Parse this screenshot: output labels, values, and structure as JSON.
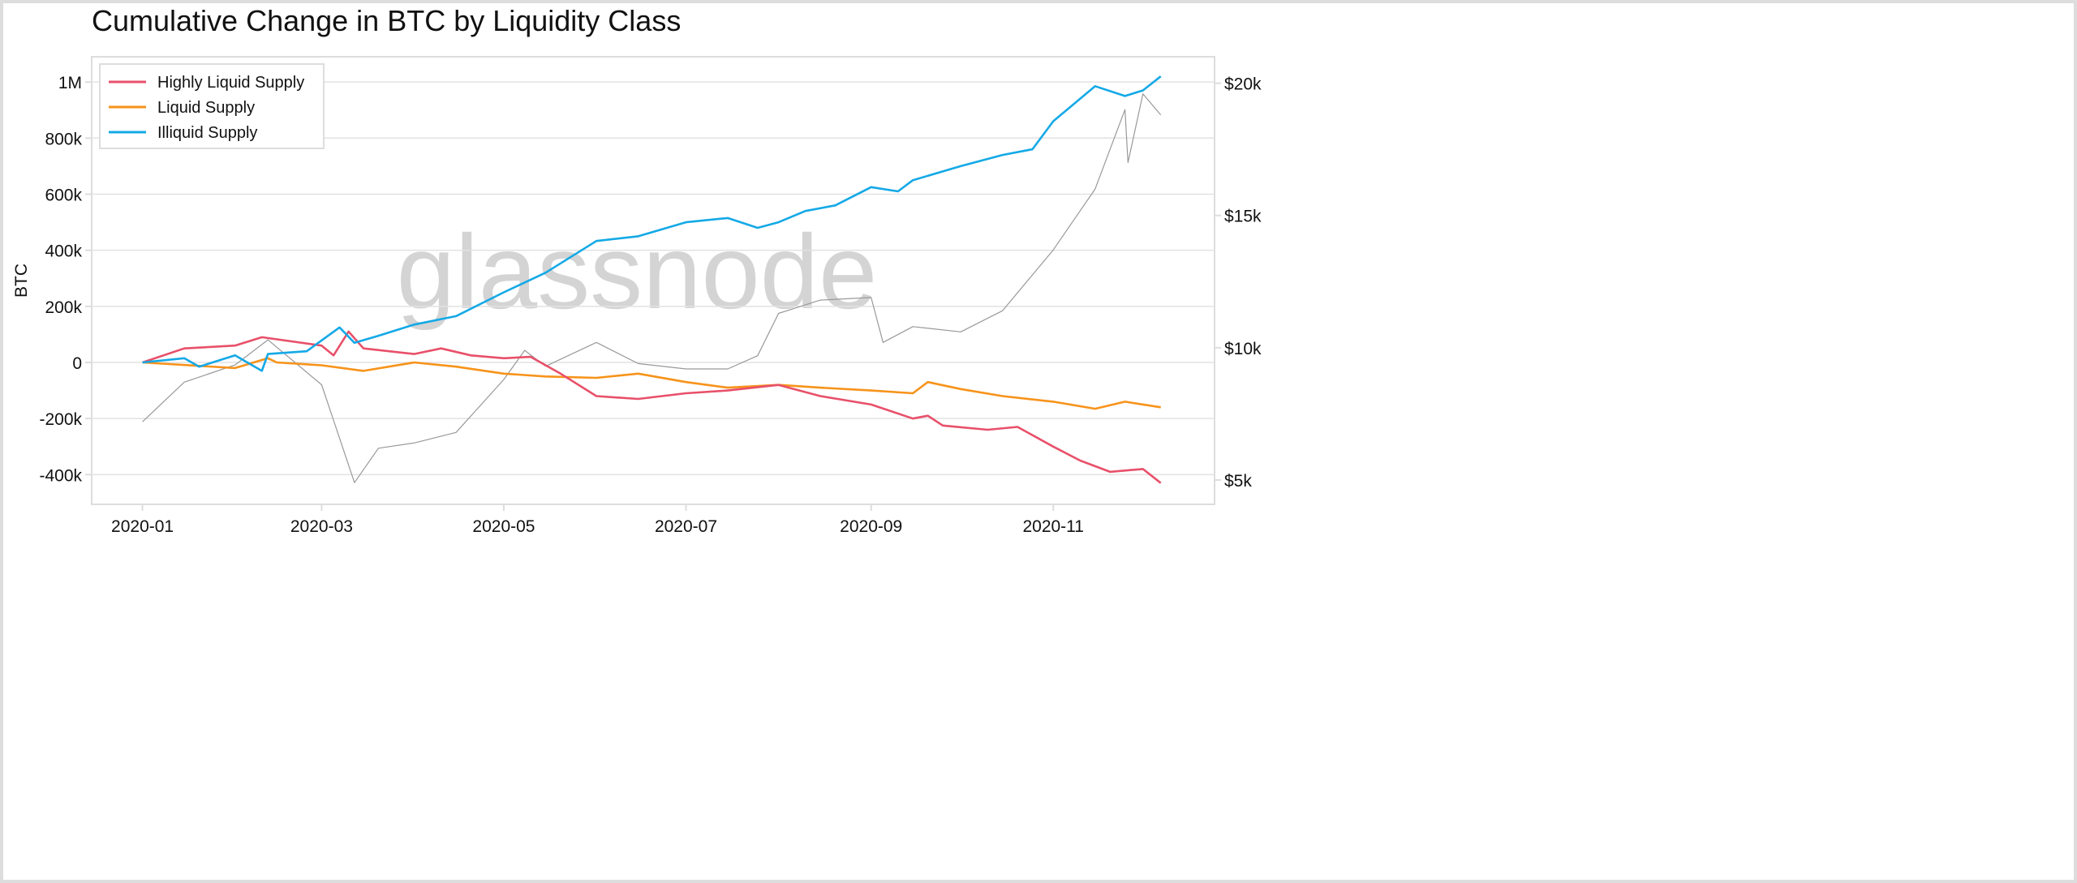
{
  "chart_data": {
    "type": "line",
    "title": "Cumulative Change in BTC by Liquidity Class",
    "ylabel": "BTC",
    "ylabel_right": "",
    "watermark": "glassnode",
    "xlim": [
      "2019-12-15",
      "2020-12-25"
    ],
    "ylim": [
      -506000,
      1090000
    ],
    "ylim_right": [
      4080,
      21000
    ],
    "grid": true,
    "legend_position": "top-left",
    "x_ticks": [
      "2020-01",
      "2020-03",
      "2020-05",
      "2020-07",
      "2020-09",
      "2020-11"
    ],
    "y_ticks": [
      {
        "v": 1000000,
        "label": "1M"
      },
      {
        "v": 800000,
        "label": "800k"
      },
      {
        "v": 600000,
        "label": "600k"
      },
      {
        "v": 400000,
        "label": "400k"
      },
      {
        "v": 200000,
        "label": "200k"
      },
      {
        "v": 0,
        "label": "0"
      },
      {
        "v": -200000,
        "label": "-200k"
      },
      {
        "v": -400000,
        "label": "-400k"
      }
    ],
    "y_ticks_right": [
      {
        "v": 20000,
        "label": "$20k"
      },
      {
        "v": 15000,
        "label": "$15k"
      },
      {
        "v": 10000,
        "label": "$10k"
      },
      {
        "v": 5000,
        "label": "$5k"
      }
    ],
    "series": [
      {
        "name": "Highly Liquid Supply",
        "color": "#e8506a",
        "axis": "left",
        "points": [
          [
            "2020-01-01",
            0
          ],
          [
            "2020-01-15",
            50000
          ],
          [
            "2020-02-01",
            60000
          ],
          [
            "2020-02-10",
            90000
          ],
          [
            "2020-03-01",
            60000
          ],
          [
            "2020-03-05",
            25000
          ],
          [
            "2020-03-10",
            110000
          ],
          [
            "2020-03-15",
            50000
          ],
          [
            "2020-04-01",
            30000
          ],
          [
            "2020-04-10",
            50000
          ],
          [
            "2020-04-20",
            25000
          ],
          [
            "2020-05-01",
            15000
          ],
          [
            "2020-05-10",
            20000
          ],
          [
            "2020-05-20",
            -40000
          ],
          [
            "2020-06-01",
            -120000
          ],
          [
            "2020-06-15",
            -130000
          ],
          [
            "2020-07-01",
            -110000
          ],
          [
            "2020-07-15",
            -100000
          ],
          [
            "2020-08-01",
            -80000
          ],
          [
            "2020-08-15",
            -120000
          ],
          [
            "2020-09-01",
            -150000
          ],
          [
            "2020-09-15",
            -200000
          ],
          [
            "2020-09-20",
            -190000
          ],
          [
            "2020-09-25",
            -225000
          ],
          [
            "2020-10-10",
            -240000
          ],
          [
            "2020-10-20",
            -230000
          ],
          [
            "2020-11-01",
            -300000
          ],
          [
            "2020-11-10",
            -350000
          ],
          [
            "2020-11-20",
            -390000
          ],
          [
            "2020-12-01",
            -380000
          ],
          [
            "2020-12-07",
            -430000
          ]
        ]
      },
      {
        "name": "Liquid Supply",
        "color": "#f7931a",
        "axis": "left",
        "points": [
          [
            "2020-01-01",
            0
          ],
          [
            "2020-02-01",
            -20000
          ],
          [
            "2020-02-12",
            15000
          ],
          [
            "2020-02-15",
            0
          ],
          [
            "2020-03-01",
            -10000
          ],
          [
            "2020-03-15",
            -30000
          ],
          [
            "2020-04-01",
            0
          ],
          [
            "2020-04-15",
            -15000
          ],
          [
            "2020-05-01",
            -40000
          ],
          [
            "2020-05-15",
            -50000
          ],
          [
            "2020-06-01",
            -55000
          ],
          [
            "2020-06-15",
            -40000
          ],
          [
            "2020-07-01",
            -70000
          ],
          [
            "2020-07-15",
            -90000
          ],
          [
            "2020-08-01",
            -80000
          ],
          [
            "2020-08-15",
            -90000
          ],
          [
            "2020-09-01",
            -100000
          ],
          [
            "2020-09-15",
            -110000
          ],
          [
            "2020-09-20",
            -70000
          ],
          [
            "2020-10-01",
            -95000
          ],
          [
            "2020-10-15",
            -120000
          ],
          [
            "2020-11-01",
            -140000
          ],
          [
            "2020-11-15",
            -165000
          ],
          [
            "2020-11-25",
            -140000
          ],
          [
            "2020-12-07",
            -160000
          ]
        ]
      },
      {
        "name": "Illiquid Supply",
        "color": "#14a9e6",
        "axis": "left",
        "points": [
          [
            "2020-01-01",
            0
          ],
          [
            "2020-01-15",
            15000
          ],
          [
            "2020-01-20",
            -15000
          ],
          [
            "2020-02-01",
            25000
          ],
          [
            "2020-02-10",
            -30000
          ],
          [
            "2020-02-12",
            30000
          ],
          [
            "2020-02-25",
            40000
          ],
          [
            "2020-03-07",
            125000
          ],
          [
            "2020-03-12",
            70000
          ],
          [
            "2020-03-20",
            95000
          ],
          [
            "2020-04-01",
            135000
          ],
          [
            "2020-04-15",
            165000
          ],
          [
            "2020-05-01",
            250000
          ],
          [
            "2020-05-15",
            320000
          ],
          [
            "2020-06-01",
            433000
          ],
          [
            "2020-06-15",
            450000
          ],
          [
            "2020-07-01",
            500000
          ],
          [
            "2020-07-15",
            515000
          ],
          [
            "2020-07-25",
            480000
          ],
          [
            "2020-08-01",
            500000
          ],
          [
            "2020-08-10",
            540000
          ],
          [
            "2020-08-20",
            560000
          ],
          [
            "2020-09-01",
            625000
          ],
          [
            "2020-09-10",
            610000
          ],
          [
            "2020-09-15",
            650000
          ],
          [
            "2020-10-01",
            700000
          ],
          [
            "2020-10-15",
            740000
          ],
          [
            "2020-10-25",
            760000
          ],
          [
            "2020-11-01",
            860000
          ],
          [
            "2020-11-15",
            985000
          ],
          [
            "2020-11-25",
            950000
          ],
          [
            "2020-12-01",
            970000
          ],
          [
            "2020-12-07",
            1020000
          ]
        ]
      },
      {
        "color": "#999999",
        "axis": "right",
        "points": [
          [
            "2020-01-01",
            7200
          ],
          [
            "2020-01-15",
            8700
          ],
          [
            "2020-02-01",
            9350
          ],
          [
            "2020-02-12",
            10300
          ],
          [
            "2020-03-01",
            8600
          ],
          [
            "2020-03-12",
            4900
          ],
          [
            "2020-03-20",
            6200
          ],
          [
            "2020-04-01",
            6400
          ],
          [
            "2020-04-15",
            6800
          ],
          [
            "2020-05-01",
            8800
          ],
          [
            "2020-05-08",
            9900
          ],
          [
            "2020-05-15",
            9300
          ],
          [
            "2020-06-01",
            10200
          ],
          [
            "2020-06-15",
            9400
          ],
          [
            "2020-07-01",
            9200
          ],
          [
            "2020-07-15",
            9200
          ],
          [
            "2020-07-25",
            9700
          ],
          [
            "2020-08-01",
            11300
          ],
          [
            "2020-08-15",
            11800
          ],
          [
            "2020-09-01",
            11900
          ],
          [
            "2020-09-05",
            10200
          ],
          [
            "2020-09-15",
            10800
          ],
          [
            "2020-10-01",
            10600
          ],
          [
            "2020-10-15",
            11400
          ],
          [
            "2020-11-01",
            13700
          ],
          [
            "2020-11-15",
            16000
          ],
          [
            "2020-11-25",
            19000
          ],
          [
            "2020-11-26",
            17000
          ],
          [
            "2020-12-01",
            19600
          ],
          [
            "2020-12-07",
            18800
          ]
        ]
      }
    ]
  }
}
